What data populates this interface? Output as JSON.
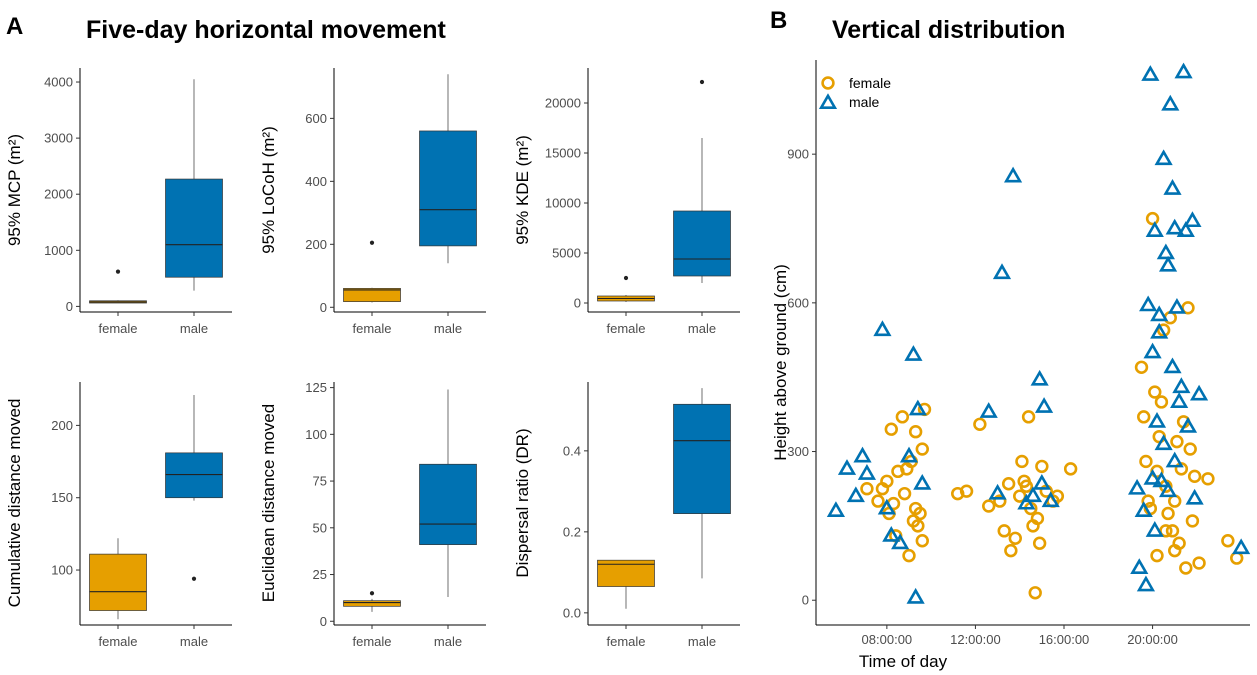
{
  "panel_a": {
    "letter": "A",
    "title": "Five-day horizontal movement"
  },
  "panel_b": {
    "letter": "B",
    "title": "Vertical distribution"
  },
  "colors": {
    "female": "#E69F00",
    "male": "#0072B2"
  },
  "chart_data": [
    {
      "type": "box",
      "categories": [
        "female",
        "male"
      ],
      "ylabel": "95% MCP (m²)",
      "ylim": [
        -100,
        4250
      ],
      "yticks": [
        0,
        1000,
        2000,
        3000,
        4000
      ],
      "boxes": [
        {
          "group": "female",
          "min": 60,
          "q1": 60,
          "median": 80,
          "q3": 100,
          "max": 110,
          "outliers": [
            620
          ]
        },
        {
          "group": "male",
          "min": 280,
          "q1": 520,
          "median": 1100,
          "q3": 2270,
          "max": 4050,
          "outliers": []
        }
      ]
    },
    {
      "type": "box",
      "categories": [
        "female",
        "male"
      ],
      "ylabel": "95% LoCoH (m²)",
      "ylim": [
        -15,
        760
      ],
      "yticks": [
        0,
        200,
        400,
        600
      ],
      "boxes": [
        {
          "group": "female",
          "min": 15,
          "q1": 18,
          "median": 55,
          "q3": 60,
          "max": 62,
          "outliers": [
            205
          ]
        },
        {
          "group": "male",
          "min": 140,
          "q1": 195,
          "median": 310,
          "q3": 560,
          "max": 740,
          "outliers": []
        }
      ]
    },
    {
      "type": "box",
      "categories": [
        "female",
        "male"
      ],
      "ylabel": "95% KDE (m²)",
      "ylim": [
        -900,
        23500
      ],
      "yticks": [
        0,
        5000,
        10000,
        15000,
        20000
      ],
      "boxes": [
        {
          "group": "female",
          "min": 100,
          "q1": 200,
          "median": 450,
          "q3": 700,
          "max": 800,
          "outliers": [
            2500
          ]
        },
        {
          "group": "male",
          "min": 2000,
          "q1": 2700,
          "median": 4400,
          "q3": 9200,
          "max": 16500,
          "outliers": [
            22100
          ]
        }
      ]
    },
    {
      "type": "box",
      "categories": [
        "female",
        "male"
      ],
      "ylabel": "Cumulative distance moved",
      "ylim": [
        62,
        230
      ],
      "yticks": [
        100,
        150,
        200
      ],
      "boxes": [
        {
          "group": "female",
          "min": 66,
          "q1": 72,
          "median": 85,
          "q3": 111,
          "max": 122,
          "outliers": []
        },
        {
          "group": "male",
          "min": 148,
          "q1": 150,
          "median": 166,
          "q3": 181,
          "max": 221,
          "outliers": [
            94
          ]
        }
      ]
    },
    {
      "type": "box",
      "categories": [
        "female",
        "male"
      ],
      "ylabel": "Euclidean distance moved",
      "ylim": [
        -2,
        128
      ],
      "yticks": [
        0,
        25,
        50,
        75,
        100,
        125
      ],
      "boxes": [
        {
          "group": "female",
          "min": 5,
          "q1": 8,
          "median": 10,
          "q3": 11,
          "max": 12,
          "outliers": [
            15
          ]
        },
        {
          "group": "male",
          "min": 13,
          "q1": 41,
          "median": 52,
          "q3": 84,
          "max": 124,
          "outliers": []
        }
      ]
    },
    {
      "type": "box",
      "categories": [
        "female",
        "male"
      ],
      "ylabel": "Dispersal ratio (DR)",
      "ylim": [
        -0.03,
        0.57
      ],
      "yticks": [
        0.0,
        0.2,
        0.4
      ],
      "ytick_labels": [
        "0.0",
        "0.2",
        "0.4"
      ],
      "boxes": [
        {
          "group": "female",
          "min": 0.01,
          "q1": 0.065,
          "median": 0.12,
          "q3": 0.13,
          "max": 0.13,
          "outliers": []
        },
        {
          "group": "male",
          "min": 0.085,
          "q1": 0.245,
          "median": 0.425,
          "q3": 0.515,
          "max": 0.555,
          "outliers": []
        }
      ]
    },
    {
      "type": "scatter",
      "xlabel": "Time of day",
      "ylabel": "Height above ground (cm)",
      "xlim": [
        4.8,
        24.4
      ],
      "ylim": [
        -50,
        1090
      ],
      "xticks": [
        8,
        12,
        16,
        20
      ],
      "xtick_labels": [
        "08:00:00",
        "12:00:00",
        "16:00:00",
        "20:00:00"
      ],
      "yticks": [
        0,
        300,
        600,
        900
      ],
      "legend": {
        "position": "top-left",
        "entries": [
          "female",
          "male"
        ]
      },
      "series": [
        {
          "name": "female",
          "marker": "circle",
          "points": [
            [
              7.1,
              225
            ],
            [
              7.6,
              200
            ],
            [
              7.8,
              225
            ],
            [
              8.0,
              240
            ],
            [
              8.1,
              175
            ],
            [
              8.3,
              195
            ],
            [
              8.5,
              260
            ],
            [
              8.7,
              370
            ],
            [
              8.9,
              265
            ],
            [
              9.1,
              280
            ],
            [
              9.3,
              185
            ],
            [
              8.4,
              130
            ],
            [
              8.8,
              215
            ],
            [
              9.0,
              90
            ],
            [
              9.2,
              160
            ],
            [
              9.3,
              340
            ],
            [
              9.5,
              175
            ],
            [
              9.6,
              120
            ],
            [
              9.6,
              305
            ],
            [
              9.7,
              385
            ],
            [
              8.2,
              345
            ],
            [
              9.4,
              150
            ],
            [
              11.2,
              215
            ],
            [
              11.6,
              220
            ],
            [
              12.2,
              355
            ],
            [
              12.6,
              190
            ],
            [
              13.1,
              200
            ],
            [
              13.3,
              140
            ],
            [
              13.5,
              235
            ],
            [
              13.6,
              100
            ],
            [
              13.8,
              125
            ],
            [
              14.0,
              210
            ],
            [
              14.2,
              240
            ],
            [
              14.3,
              230
            ],
            [
              14.5,
              185
            ],
            [
              14.6,
              150
            ],
            [
              14.7,
              15
            ],
            [
              14.8,
              165
            ],
            [
              14.9,
              115
            ],
            [
              15.0,
              270
            ],
            [
              15.2,
              220
            ],
            [
              15.5,
              200
            ],
            [
              15.7,
              210
            ],
            [
              16.3,
              265
            ],
            [
              14.1,
              280
            ],
            [
              14.4,
              370
            ],
            [
              19.5,
              470
            ],
            [
              19.6,
              370
            ],
            [
              19.7,
              280
            ],
            [
              19.8,
              200
            ],
            [
              19.9,
              185
            ],
            [
              20.0,
              770
            ],
            [
              20.1,
              420
            ],
            [
              20.2,
              260
            ],
            [
              20.3,
              330
            ],
            [
              20.4,
              400
            ],
            [
              20.5,
              545
            ],
            [
              20.6,
              140
            ],
            [
              20.7,
              175
            ],
            [
              20.8,
              570
            ],
            [
              20.9,
              140
            ],
            [
              21.0,
              100
            ],
            [
              21.1,
              320
            ],
            [
              21.2,
              115
            ],
            [
              21.3,
              265
            ],
            [
              21.4,
              360
            ],
            [
              21.5,
              65
            ],
            [
              21.6,
              590
            ],
            [
              21.7,
              305
            ],
            [
              21.8,
              160
            ],
            [
              21.9,
              250
            ],
            [
              22.1,
              75
            ],
            [
              22.5,
              245
            ],
            [
              23.4,
              120
            ],
            [
              23.8,
              85
            ],
            [
              20.6,
              230
            ],
            [
              20.2,
              90
            ],
            [
              21.0,
              200
            ]
          ]
        },
        {
          "name": "male",
          "marker": "triangle",
          "points": [
            [
              5.7,
              180
            ],
            [
              6.2,
              265
            ],
            [
              6.6,
              210
            ],
            [
              6.9,
              290
            ],
            [
              7.1,
              255
            ],
            [
              7.8,
              545
            ],
            [
              8.0,
              185
            ],
            [
              8.2,
              130
            ],
            [
              8.6,
              115
            ],
            [
              9.0,
              290
            ],
            [
              9.2,
              495
            ],
            [
              9.3,
              5
            ],
            [
              9.4,
              385
            ],
            [
              9.6,
              235
            ],
            [
              12.6,
              380
            ],
            [
              13.0,
              215
            ],
            [
              13.2,
              660
            ],
            [
              13.7,
              855
            ],
            [
              14.3,
              195
            ],
            [
              14.6,
              210
            ],
            [
              14.9,
              445
            ],
            [
              15.1,
              390
            ],
            [
              15.4,
              200
            ],
            [
              15.0,
              235
            ],
            [
              19.3,
              225
            ],
            [
              19.4,
              65
            ],
            [
              19.6,
              180
            ],
            [
              19.7,
              30
            ],
            [
              19.8,
              595
            ],
            [
              19.9,
              1060
            ],
            [
              20.0,
              500
            ],
            [
              20.1,
              745
            ],
            [
              20.2,
              360
            ],
            [
              20.3,
              575
            ],
            [
              20.4,
              240
            ],
            [
              20.5,
              890
            ],
            [
              20.6,
              700
            ],
            [
              20.7,
              675
            ],
            [
              20.8,
              1000
            ],
            [
              20.9,
              830
            ],
            [
              21.0,
              750
            ],
            [
              21.1,
              590
            ],
            [
              21.2,
              400
            ],
            [
              21.3,
              430
            ],
            [
              21.4,
              1065
            ],
            [
              21.5,
              745
            ],
            [
              21.6,
              350
            ],
            [
              21.8,
              765
            ],
            [
              21.9,
              205
            ],
            [
              22.1,
              415
            ],
            [
              20.1,
              140
            ],
            [
              20.5,
              315
            ],
            [
              20.9,
              470
            ],
            [
              20.3,
              540
            ],
            [
              20.7,
              220
            ],
            [
              21.0,
              280
            ],
            [
              20.0,
              245
            ],
            [
              24.0,
              105
            ]
          ]
        }
      ]
    }
  ]
}
